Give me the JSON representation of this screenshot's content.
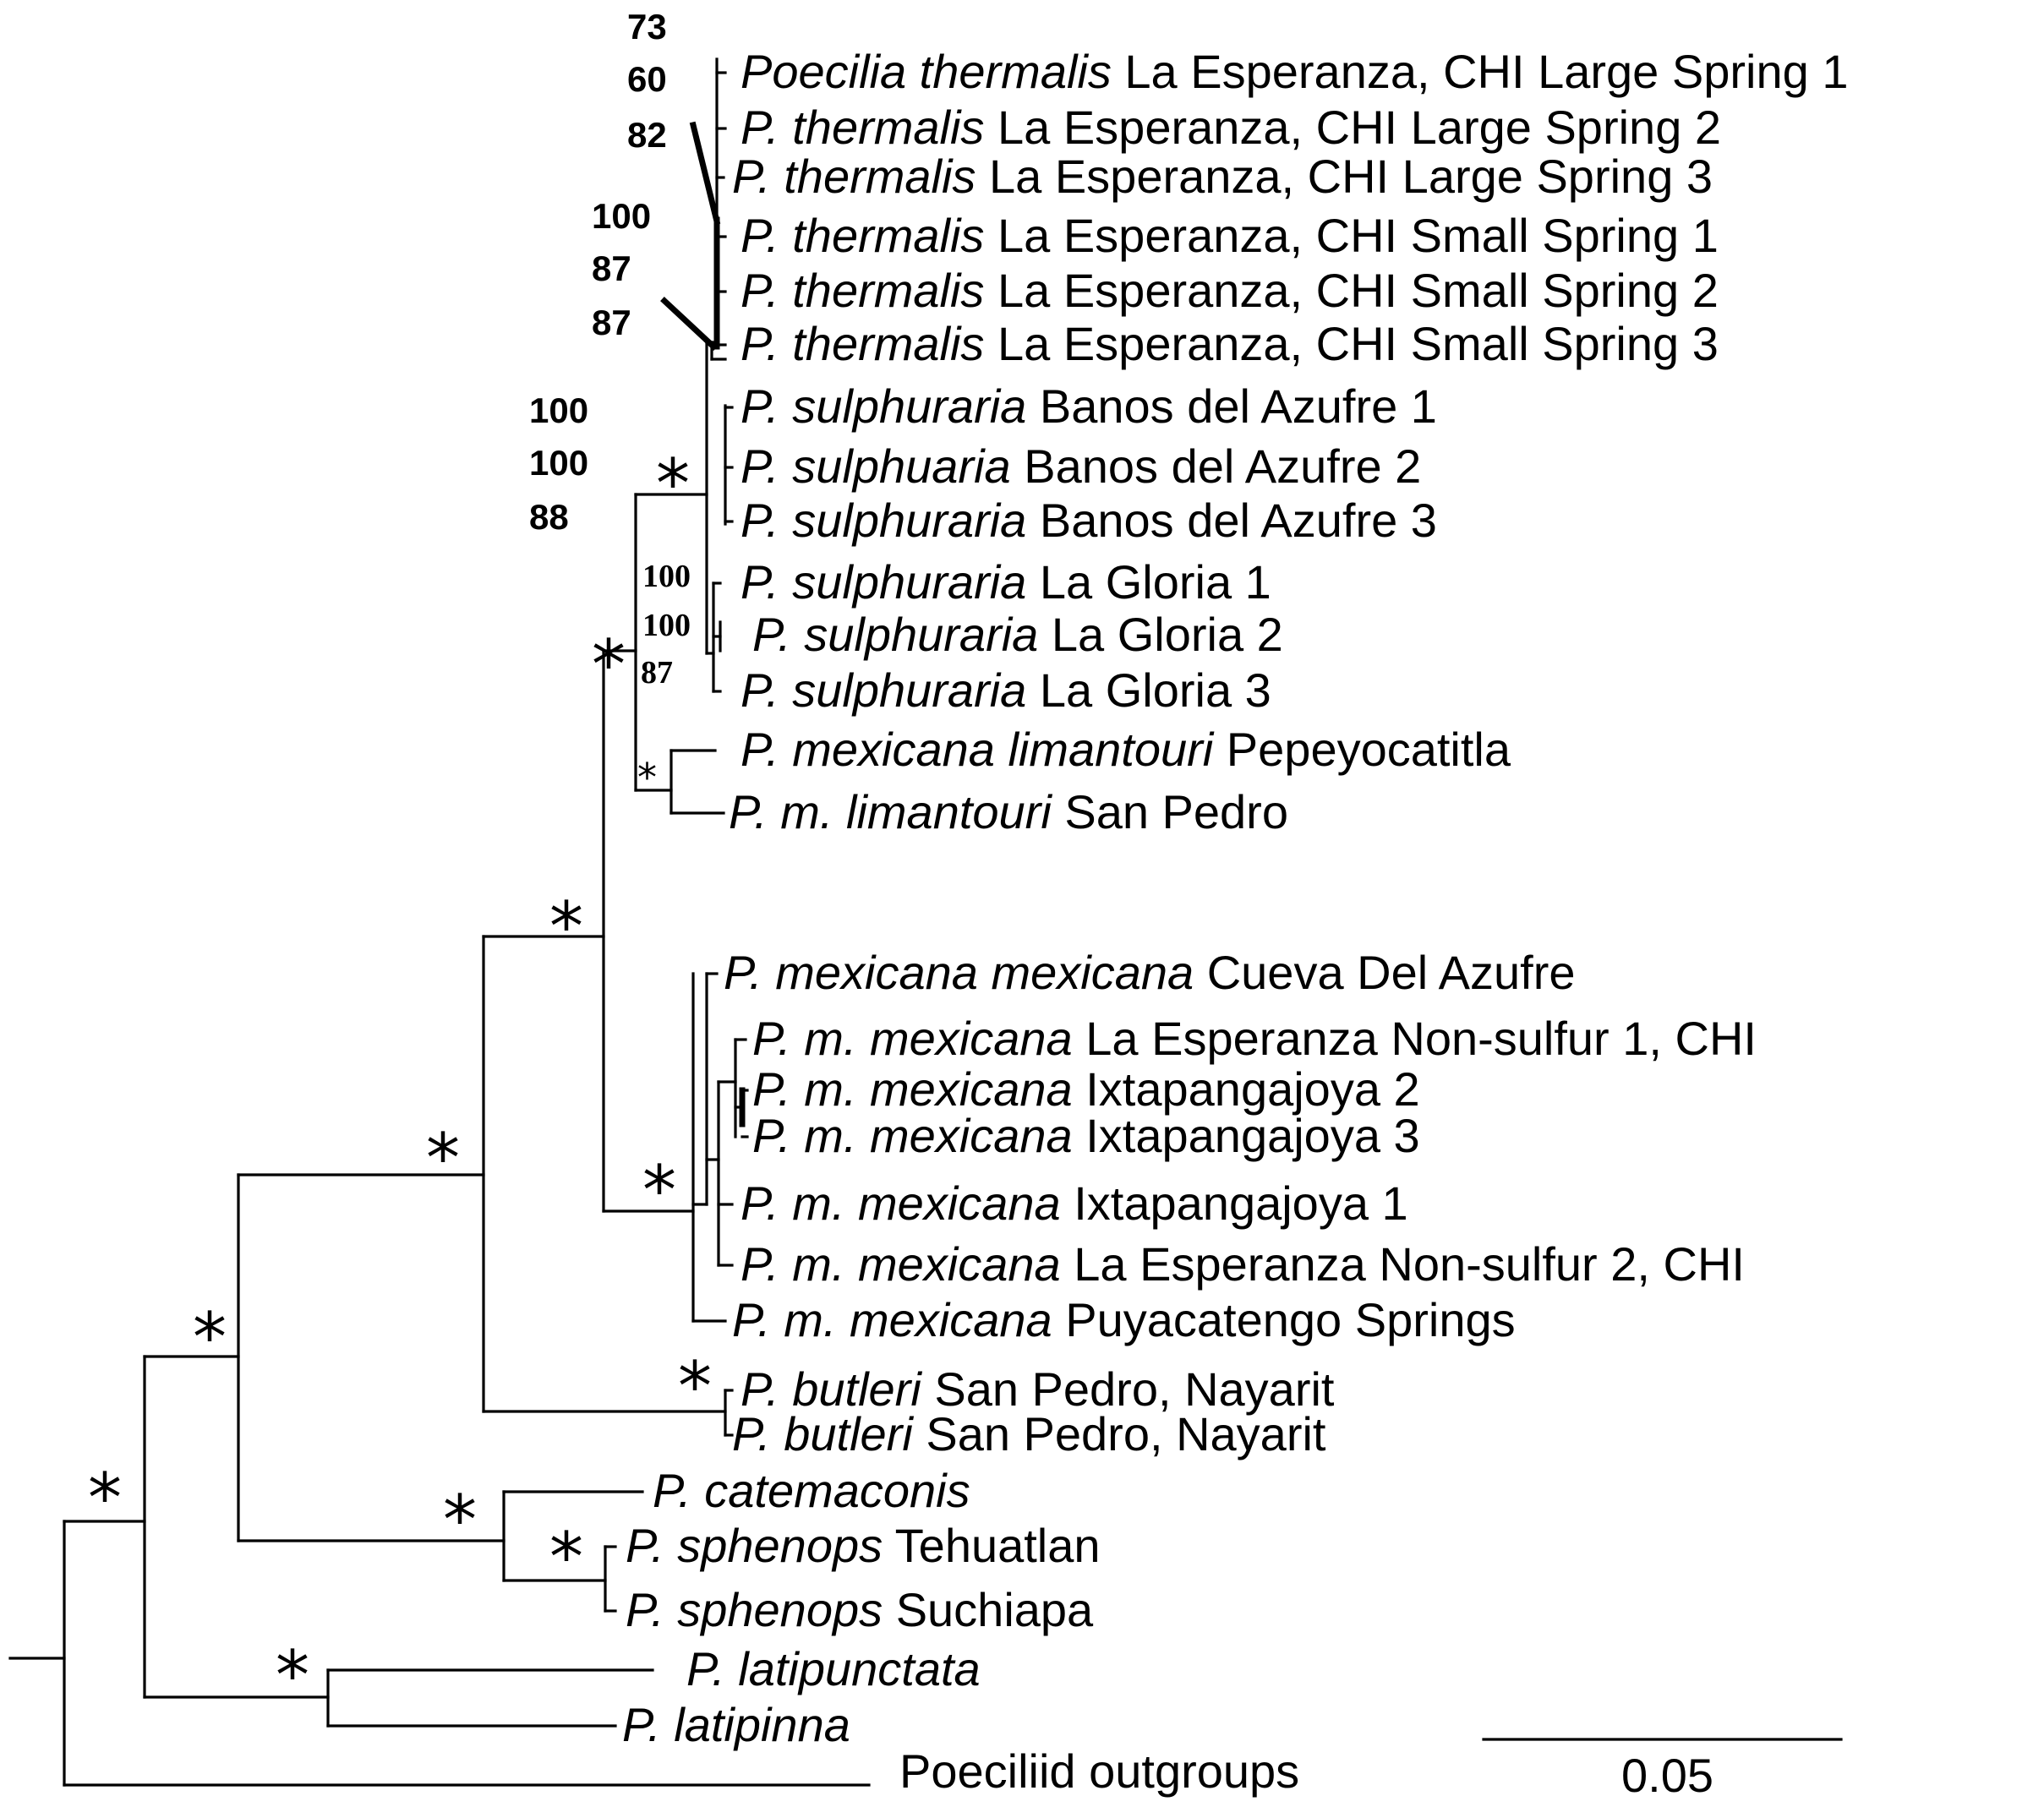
{
  "taxa": [
    {
      "italic": "Poecilia thermalis",
      "plain": "La Esperanza, CHI Large Spring 1"
    },
    {
      "italic": "P. thermalis",
      "plain": "La Esperanza, CHI Large Spring 2"
    },
    {
      "italic": "P. thermalis",
      "plain": "La Esperanza, CHI Large Spring 3"
    },
    {
      "italic": "P. thermalis",
      "plain": "La Esperanza, CHI Small Spring 1"
    },
    {
      "italic": "P. thermalis",
      "plain": "La Esperanza, CHI Small Spring 2"
    },
    {
      "italic": "P. thermalis",
      "plain": "La Esperanza, CHI Small Spring 3"
    },
    {
      "italic": "P. sulphuraria",
      "plain": "Banos del Azufre 1"
    },
    {
      "italic": "P. sulphuaria",
      "plain": "Banos del Azufre 2"
    },
    {
      "italic": "P. sulphuraria",
      "plain": "Banos del Azufre 3"
    },
    {
      "italic": "P. sulphuraria",
      "plain": "La Gloria 1"
    },
    {
      "italic": "P. sulphuraria",
      "plain": "La Gloria 2"
    },
    {
      "italic": "P. sulphuraria",
      "plain": "La Gloria 3"
    },
    {
      "italic": "P. mexicana limantouri",
      "plain": "Pepeyocatitla"
    },
    {
      "italic": "P. m. limantouri",
      "plain": "San Pedro"
    },
    {
      "italic": "P. mexicana mexicana",
      "plain": "Cueva Del Azufre"
    },
    {
      "italic": "P. m. mexicana",
      "plain": " La Esperanza Non-sulfur 1, CHI"
    },
    {
      "italic": "P. m. mexicana",
      "plain": "Ixtapangajoya 2"
    },
    {
      "italic": "P. m. mexicana",
      "plain": "Ixtapangajoya 3"
    },
    {
      "italic": "P. m. mexicana",
      "plain": "Ixtapangajoya 1"
    },
    {
      "italic": "P. m. mexicana",
      "plain": "La Esperanza Non-sulfur 2, CHI"
    },
    {
      "italic": "P. m. mexicana",
      "plain": "Puyacatengo Springs"
    },
    {
      "italic": "P. butleri",
      "plain": "San Pedro, Nayarit"
    },
    {
      "italic": "P. butleri",
      "plain": "San Pedro, Nayarit"
    },
    {
      "italic": "P. catemaconis",
      "plain": ""
    },
    {
      "italic": "P. sphenops",
      "plain": "Tehuatlan"
    },
    {
      "italic": "P. sphenops",
      "plain": "Suchiapa"
    },
    {
      "italic": "P. latipunctata",
      "plain": ""
    },
    {
      "italic": "P. latipinna",
      "plain": ""
    },
    {
      "italic": "",
      "plain": "Poeciliid outgroups"
    }
  ],
  "support_values": {
    "thermalis_large": [
      "73",
      "60",
      "82"
    ],
    "thermalis_small": [
      "100",
      "87",
      "87"
    ],
    "sulphuraria_group": [
      "100",
      "100",
      "88"
    ],
    "la_gloria": [
      "100",
      "100",
      "87"
    ]
  },
  "support_star": "*",
  "scale_bar": {
    "label": "0.05",
    "length_units": 0.05
  }
}
